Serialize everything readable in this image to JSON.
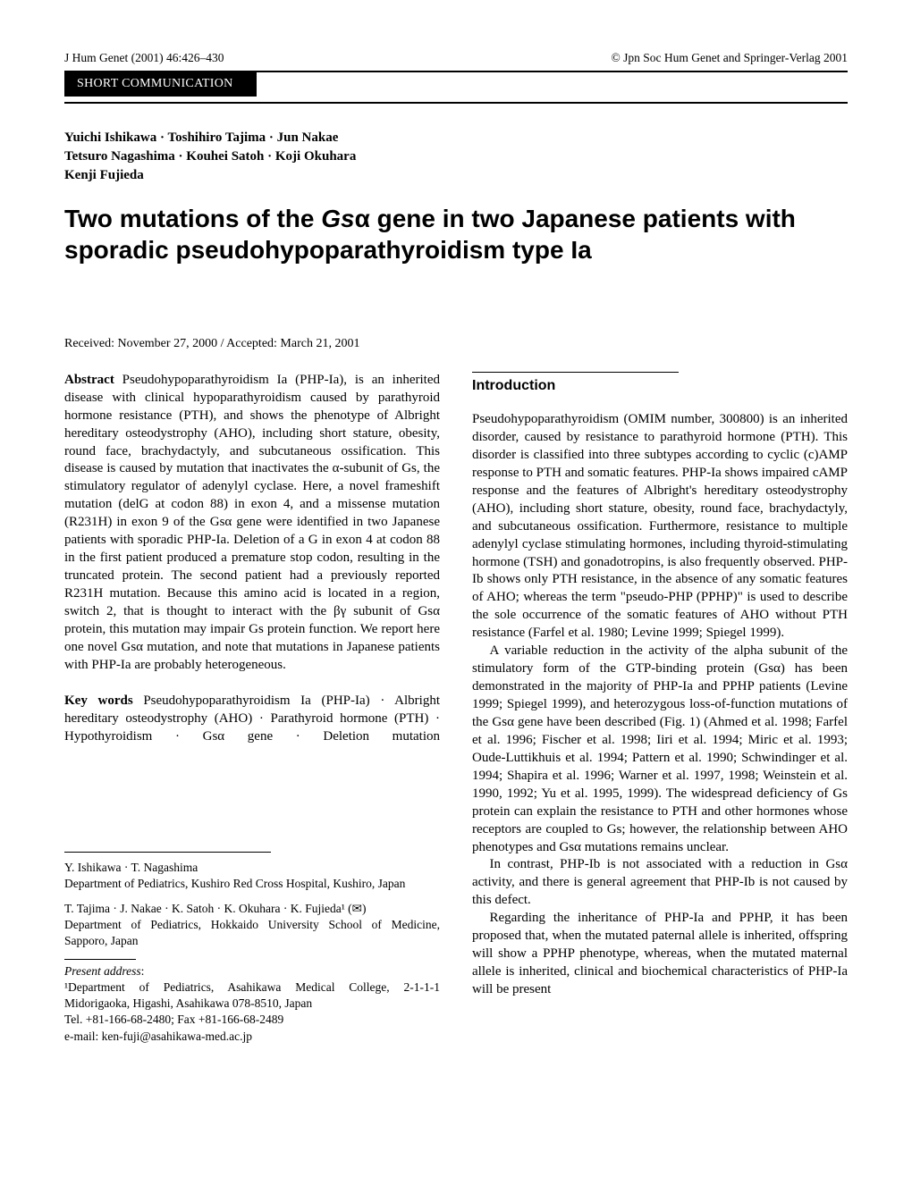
{
  "header": {
    "left": "J Hum Genet (2001) 46:426–430",
    "right": "© Jpn Soc Hum Genet and Springer-Verlag 2001"
  },
  "section_band": "SHORT COMMUNICATION",
  "authors": "Yuichi Ishikawa · Toshihiro Tajima · Jun Nakae\nTetsuro Nagashima · Kouhei Satoh · Koji Okuhara\nKenji Fujieda",
  "title": "Two mutations of the Gsα gene in two Japanese patients with sporadic pseudohypoparathyroidism type Ia",
  "dates": "Received: November 27, 2000 / Accepted: March 21, 2001",
  "abstract_label": "Abstract",
  "abstract_body": " Pseudohypoparathyroidism Ia (PHP-Ia), is an inherited disease with clinical hypoparathyroidism caused by parathyroid hormone resistance (PTH), and shows the phenotype of Albright hereditary osteodystrophy (AHO), including short stature, obesity, round face, brachydactyly, and subcutaneous ossification. This disease is caused by mutation that inactivates the α-subunit of Gs, the stimulatory regulator of adenylyl cyclase. Here, a novel frameshift mutation (delG at codon 88) in exon 4, and a missense mutation (R231H) in exon 9 of the Gsα gene were identified in two Japanese patients with sporadic PHP-Ia. Deletion of a G in exon 4 at codon 88 in the first patient produced a premature stop codon, resulting in the truncated protein. The second patient had a previously reported R231H mutation. Because this amino acid is located in a region, switch 2, that is thought to interact with the βγ subunit of Gsα protein, this mutation may impair Gs protein function. We report here one novel Gsα mutation, and note that mutations in Japanese patients with PHP-Ia are probably heterogeneous.",
  "keywords_label": "Key words",
  "keywords_body": " Pseudohypoparathyroidism Ia (PHP-Ia) · Albright hereditary osteodystrophy (AHO) · Parathyroid hormone (PTH) · Hypothyroidism · Gsα gene · Deletion mutation",
  "intro_heading": "Introduction",
  "intro_paragraphs": [
    "Pseudohypoparathyroidism (OMIM number, 300800) is an inherited disorder, caused by resistance to parathyroid hormone (PTH). This disorder is classified into three subtypes according to cyclic (c)AMP response to PTH and somatic features. PHP-Ia shows impaired cAMP response and the features of Albright's hereditary osteodystrophy (AHO), including short stature, obesity, round face, brachydactyly, and subcutaneous ossification. Furthermore, resistance to multiple adenylyl cyclase stimulating hormones, including thyroid-stimulating hormone (TSH) and gonadotropins, is also frequently observed. PHP-Ib shows only PTH resistance, in the absence of any somatic features of AHO; whereas the term \"pseudo-PHP (PPHP)\" is used to describe the sole occurrence of the somatic features of AHO without PTH resistance (Farfel et al. 1980; Levine 1999; Spiegel 1999).",
    "A variable reduction in the activity of the alpha subunit of the stimulatory form of the GTP-binding protein (Gsα) has been demonstrated in the majority of PHP-Ia and PPHP patients (Levine 1999; Spiegel 1999), and heterozygous loss-of-function mutations of the Gsα gene have been described (Fig. 1) (Ahmed et al. 1998; Farfel et al. 1996; Fischer et al. 1998; Iiri et al. 1994; Miric et al. 1993; Oude-Luttikhuis et al. 1994; Pattern et al. 1990; Schwindinger et al. 1994; Shapira et al. 1996; Warner et al. 1997, 1998; Weinstein et al. 1990, 1992; Yu et al. 1995, 1999). The widespread deficiency of Gs protein can explain the resistance to PTH and other hormones whose receptors are coupled to Gs; however, the relationship between AHO phenotypes and Gsα mutations remains unclear.",
    "In contrast, PHP-Ib is not associated with a reduction in Gsα activity, and there is general agreement that PHP-Ib is not caused by this defect.",
    "Regarding the inheritance of PHP-Ia and PPHP, it has been proposed that, when the mutated paternal allele is inherited, offspring will show a PPHP phenotype, whereas, when the mutated maternal allele is inherited, clinical and biochemical characteristics of PHP-Ia will be present"
  ],
  "affiliations": {
    "block1_line1": "Y. Ishikawa · T. Nagashima",
    "block1_line2": "Department of Pediatrics, Kushiro Red Cross Hospital, Kushiro, Japan",
    "block2_line1": "T. Tajima · J. Nakae · K. Satoh · K. Okuhara · K. Fujieda¹ (✉)",
    "block2_line2": "Department of Pediatrics, Hokkaido University School of Medicine, Sapporo, Japan",
    "present_label": "Present address",
    "present_colon": ":",
    "present_line1": "¹Department of Pediatrics, Asahikawa Medical College, 2-1-1-1 Midorigaoka, Higashi, Asahikawa 078-8510, Japan",
    "present_line2": "Tel. +81-166-68-2480; Fax +81-166-68-2489",
    "present_line3": "e-mail: ken-fuji@asahikawa-med.ac.jp"
  }
}
